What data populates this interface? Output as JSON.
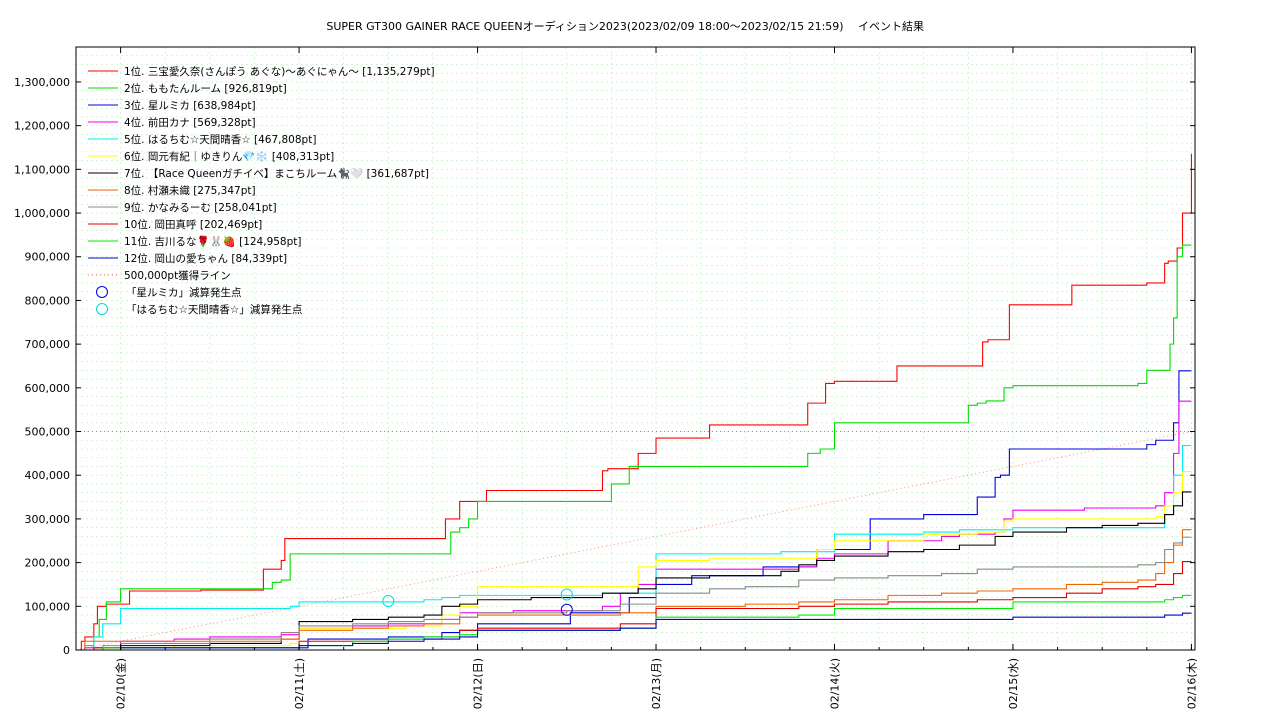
{
  "chart_data": {
    "type": "line",
    "title": "SUPER GT300 GAINER RACE QUEENオーディション2023(2023/02/09 18:00～2023/02/15 21:59)",
    "subtitle": "イベント結果",
    "xlabel": "",
    "ylabel": "",
    "ylim": [
      0,
      1380000
    ],
    "xlim": [
      -0.25,
      6.02
    ],
    "y_ticks": [
      "0",
      "100,000",
      "200,000",
      "300,000",
      "400,000",
      "500,000",
      "600,000",
      "700,000",
      "800,000",
      "900,000",
      "1,000,000",
      "1,100,000",
      "1,200,000",
      "1,300,000"
    ],
    "y_tick_values": [
      0,
      100000,
      200000,
      300000,
      400000,
      500000,
      600000,
      700000,
      800000,
      900000,
      1000000,
      1100000,
      1200000,
      1300000
    ],
    "x_ticks": [
      "02/10(金)",
      "02/11(土)",
      "02/12(日)",
      "02/13(月)",
      "02/14(火)",
      "02/15(水)",
      "02/16(木)"
    ],
    "x_tick_values": [
      0,
      1,
      2,
      3,
      4,
      5,
      6
    ],
    "x_unit": "days since 02/10 00:00",
    "grid": true,
    "legend_position": "top-left",
    "series": [
      {
        "name": "1位. 三宝愛久奈(さんぽう あぐな)〜あぐにゃん〜 [1,135,279pt]",
        "color": "#ff0000",
        "x": [
          -0.25,
          -0.22,
          -0.2,
          -0.15,
          -0.13,
          -0.08,
          0.05,
          0.35,
          0.45,
          0.6,
          0.8,
          0.9,
          0.92,
          1.0,
          1.5,
          1.75,
          1.82,
          1.85,
          1.9,
          2.05,
          2.4,
          2.58,
          2.6,
          2.7,
          2.73,
          2.8,
          2.9,
          3.0,
          3.25,
          3.3,
          3.5,
          3.7,
          3.85,
          3.92,
          3.95,
          4.0,
          4.3,
          4.35,
          4.6,
          4.8,
          4.83,
          4.86,
          4.95,
          4.98,
          5.0,
          5.3,
          5.33,
          5.7,
          5.75,
          5.77,
          5.85,
          5.87,
          5.9,
          5.92,
          5.95,
          6.0
        ],
        "y": [
          0,
          20000,
          30000,
          60000,
          100000,
          105000,
          135000,
          135000,
          137000,
          137000,
          185000,
          205000,
          255000,
          255000,
          255000,
          255000,
          300000,
          300000,
          340000,
          365000,
          365000,
          365000,
          365000,
          410000,
          415000,
          415000,
          450000,
          485000,
          485000,
          515000,
          515000,
          515000,
          565000,
          565000,
          610000,
          615000,
          615000,
          650000,
          650000,
          650000,
          705000,
          710000,
          710000,
          790000,
          790000,
          790000,
          835000,
          835000,
          840000,
          840000,
          885000,
          890000,
          890000,
          920000,
          1000000,
          1135279
        ]
      },
      {
        "name": "2位. ももたんルーム [926,819pt]",
        "color": "#00dd00",
        "x": [
          -0.25,
          -0.2,
          -0.15,
          -0.12,
          -0.08,
          0.0,
          0.5,
          0.8,
          0.85,
          0.9,
          0.95,
          1.5,
          1.8,
          1.85,
          1.9,
          1.95,
          2.0,
          2.5,
          2.7,
          2.75,
          2.8,
          2.85,
          3.3,
          3.55,
          3.8,
          3.85,
          3.92,
          4.0,
          4.4,
          4.7,
          4.75,
          4.8,
          4.85,
          4.95,
          5.0,
          5.5,
          5.65,
          5.7,
          5.75,
          5.85,
          5.88,
          5.9,
          5.92,
          5.95,
          6.0
        ],
        "y": [
          0,
          10000,
          30000,
          70000,
          110000,
          140000,
          140000,
          140000,
          155000,
          160000,
          220000,
          220000,
          220000,
          270000,
          280000,
          300000,
          340000,
          340000,
          340000,
          380000,
          380000,
          420000,
          420000,
          420000,
          420000,
          450000,
          460000,
          520000,
          520000,
          520000,
          560000,
          565000,
          570000,
          600000,
          605000,
          605000,
          605000,
          610000,
          640000,
          640000,
          700000,
          760000,
          900000,
          926819,
          926819
        ]
      },
      {
        "name": "3位. 星ルミカ [638,984pt]",
        "color": "#0000dd",
        "x": [
          -0.25,
          -0.1,
          0.5,
          0.9,
          1.0,
          1.05,
          1.5,
          1.8,
          1.9,
          2.0,
          2.5,
          2.52,
          2.8,
          2.85,
          3.0,
          3.2,
          3.5,
          3.6,
          3.8,
          3.9,
          4.0,
          4.2,
          4.5,
          4.75,
          4.8,
          4.9,
          4.93,
          4.98,
          5.0,
          5.3,
          5.5,
          5.6,
          5.75,
          5.8,
          5.85,
          5.9,
          5.93,
          6.0
        ],
        "y": [
          0,
          0,
          0,
          0,
          5000,
          25000,
          30000,
          40000,
          45000,
          60000,
          60000,
          85000,
          85000,
          120000,
          150000,
          170000,
          170000,
          190000,
          190000,
          230000,
          230000,
          300000,
          310000,
          310000,
          350000,
          395000,
          400000,
          460000,
          460000,
          460000,
          460000,
          460000,
          470000,
          480000,
          480000,
          520000,
          638984,
          638984
        ]
      },
      {
        "name": "4位. 前田カナ [569,328pt]",
        "color": "#ee00ee",
        "x": [
          -0.25,
          -0.2,
          0.0,
          0.3,
          0.5,
          0.9,
          1.0,
          1.3,
          1.5,
          1.8,
          1.9,
          2.2,
          2.5,
          2.7,
          2.8,
          2.9,
          3.0,
          3.3,
          3.5,
          3.8,
          3.9,
          4.0,
          4.3,
          4.6,
          4.7,
          4.9,
          4.95,
          5.0,
          5.4,
          5.6,
          5.8,
          5.85,
          5.9,
          5.93,
          6.0
        ],
        "y": [
          0,
          5000,
          20000,
          25000,
          30000,
          35000,
          50000,
          55000,
          60000,
          70000,
          85000,
          90000,
          90000,
          100000,
          130000,
          150000,
          185000,
          185000,
          185000,
          190000,
          210000,
          220000,
          250000,
          260000,
          265000,
          270000,
          300000,
          320000,
          325000,
          325000,
          330000,
          360000,
          450000,
          569328,
          569328
        ]
      },
      {
        "name": "5位. はるちむ☆天間晴香☆ [467,808pt]",
        "color": "#00eeee",
        "x": [
          -0.25,
          -0.15,
          -0.1,
          0.0,
          0.5,
          0.8,
          0.95,
          1.0,
          1.5,
          1.7,
          1.8,
          1.9,
          2.0,
          2.3,
          2.5,
          2.7,
          2.9,
          3.0,
          3.5,
          3.7,
          3.9,
          4.0,
          4.2,
          4.5,
          4.7,
          4.9,
          5.0,
          5.5,
          5.7,
          5.8,
          5.85,
          5.9,
          5.95,
          6.0
        ],
        "y": [
          0,
          30000,
          60000,
          95000,
          95000,
          95000,
          100000,
          110000,
          110000,
          115000,
          120000,
          125000,
          125000,
          125000,
          125000,
          130000,
          130000,
          220000,
          220000,
          225000,
          225000,
          265000,
          265000,
          270000,
          275000,
          275000,
          280000,
          280000,
          280000,
          280000,
          310000,
          400000,
          467808,
          467808
        ]
      },
      {
        "name": "6位. 岡元有紀｜ゆきりん💎❄️ [408,313pt]",
        "color": "#ffff00",
        "x": [
          -0.25,
          -0.1,
          0.3,
          0.6,
          0.95,
          1.0,
          1.3,
          1.6,
          1.8,
          1.9,
          2.0,
          2.5,
          2.8,
          2.9,
          3.0,
          3.3,
          3.5,
          3.8,
          3.9,
          4.0,
          4.5,
          4.8,
          4.95,
          5.0,
          5.5,
          5.8,
          5.85,
          5.9,
          5.95,
          6.0
        ],
        "y": [
          0,
          5000,
          10000,
          10000,
          15000,
          50000,
          50000,
          55000,
          80000,
          100000,
          145000,
          145000,
          145000,
          190000,
          205000,
          210000,
          210000,
          210000,
          230000,
          250000,
          265000,
          270000,
          295000,
          300000,
          300000,
          305000,
          330000,
          360000,
          408313,
          408313
        ]
      },
      {
        "name": "7位. 【Race Queenガチイベ】まこちルーム🐈‍⬛🤍 [361,687pt]",
        "color": "#000000",
        "x": [
          -0.25,
          -0.1,
          0.0,
          0.5,
          0.9,
          1.0,
          1.3,
          1.5,
          1.7,
          1.8,
          1.9,
          2.0,
          2.3,
          2.5,
          2.7,
          2.85,
          2.9,
          3.0,
          3.3,
          3.5,
          3.7,
          3.8,
          3.9,
          4.0,
          4.3,
          4.5,
          4.7,
          4.9,
          5.0,
          5.3,
          5.5,
          5.7,
          5.85,
          5.9,
          5.95,
          6.0
        ],
        "y": [
          0,
          5000,
          10000,
          15000,
          25000,
          65000,
          70000,
          75000,
          80000,
          100000,
          105000,
          115000,
          120000,
          120000,
          130000,
          130000,
          140000,
          165000,
          170000,
          170000,
          180000,
          195000,
          205000,
          215000,
          225000,
          230000,
          240000,
          260000,
          270000,
          280000,
          285000,
          290000,
          310000,
          330000,
          361687,
          361687
        ]
      },
      {
        "name": "8位. 村瀬未織 [275,347pt]",
        "color": "#ee6600",
        "x": [
          -0.25,
          -0.2,
          0.0,
          0.5,
          0.9,
          1.0,
          1.3,
          1.5,
          1.7,
          1.9,
          2.0,
          2.5,
          2.8,
          3.0,
          3.3,
          3.5,
          3.8,
          4.0,
          4.3,
          4.6,
          4.8,
          5.0,
          5.3,
          5.5,
          5.7,
          5.8,
          5.85,
          5.9,
          5.95,
          6.0
        ],
        "y": [
          0,
          20000,
          20000,
          20000,
          25000,
          45000,
          50000,
          55000,
          60000,
          75000,
          80000,
          80000,
          85000,
          100000,
          100000,
          105000,
          110000,
          115000,
          125000,
          130000,
          135000,
          140000,
          150000,
          155000,
          160000,
          175000,
          200000,
          240000,
          275347,
          275347
        ]
      },
      {
        "name": "9位. かなみるーむ [258,041pt]",
        "color": "#888888",
        "x": [
          -0.25,
          -0.1,
          0.0,
          0.5,
          0.9,
          1.0,
          1.3,
          1.5,
          1.7,
          1.9,
          2.0,
          2.5,
          2.8,
          3.0,
          3.3,
          3.5,
          3.8,
          4.0,
          4.3,
          4.6,
          4.8,
          5.0,
          5.3,
          5.5,
          5.7,
          5.8,
          5.85,
          5.9,
          5.95,
          6.0
        ],
        "y": [
          0,
          10000,
          15000,
          25000,
          40000,
          55000,
          60000,
          65000,
          70000,
          75000,
          85000,
          90000,
          105000,
          130000,
          140000,
          145000,
          160000,
          165000,
          170000,
          175000,
          185000,
          190000,
          190000,
          190000,
          195000,
          200000,
          230000,
          245000,
          258041,
          258041
        ]
      },
      {
        "name": "10位. 岡田真呼 [202,469pt]",
        "color": "#dd0000",
        "x": [
          -0.25,
          -0.15,
          0.0,
          0.5,
          0.9,
          1.0,
          1.3,
          1.5,
          1.7,
          1.8,
          1.9,
          2.0,
          2.5,
          2.8,
          3.0,
          3.3,
          3.5,
          3.8,
          4.0,
          4.3,
          4.6,
          4.8,
          5.0,
          5.3,
          5.5,
          5.7,
          5.8,
          5.9,
          5.95,
          6.0
        ],
        "y": [
          0,
          5000,
          5000,
          5000,
          5000,
          20000,
          20000,
          25000,
          25000,
          30000,
          45000,
          50000,
          50000,
          60000,
          95000,
          95000,
          95000,
          100000,
          105000,
          110000,
          110000,
          115000,
          120000,
          130000,
          140000,
          145000,
          150000,
          175000,
          202469,
          202469
        ]
      },
      {
        "name": "11位. 吉川るな🌹🐰🍓 [124,958pt]",
        "color": "#00ee00",
        "x": [
          -0.25,
          -0.1,
          0.0,
          0.5,
          0.9,
          1.0,
          1.3,
          1.5,
          1.7,
          1.9,
          2.0,
          2.5,
          2.8,
          3.0,
          3.3,
          3.5,
          3.8,
          4.0,
          4.3,
          4.6,
          4.8,
          5.0,
          5.3,
          5.5,
          5.7,
          5.8,
          5.85,
          5.9,
          5.95,
          6.0
        ],
        "y": [
          0,
          5000,
          5000,
          5000,
          5000,
          10000,
          20000,
          25000,
          30000,
          35000,
          45000,
          45000,
          50000,
          75000,
          75000,
          75000,
          80000,
          95000,
          95000,
          95000,
          95000,
          110000,
          110000,
          110000,
          110000,
          110000,
          115000,
          120000,
          124958,
          124958
        ]
      },
      {
        "name": "12位. 岡山の愛ちゃん [84,339pt]",
        "color": "#0000cc",
        "x": [
          -0.25,
          -0.1,
          0.0,
          0.5,
          0.9,
          1.0,
          1.3,
          1.5,
          1.7,
          1.9,
          2.0,
          2.5,
          2.8,
          3.0,
          3.3,
          3.5,
          3.8,
          4.0,
          4.3,
          4.6,
          4.8,
          5.0,
          5.3,
          5.5,
          5.7,
          5.8,
          5.85,
          5.9,
          5.95,
          6.0
        ],
        "y": [
          0,
          0,
          5000,
          5000,
          5000,
          10000,
          15000,
          20000,
          25000,
          30000,
          45000,
          45000,
          50000,
          70000,
          70000,
          70000,
          70000,
          70000,
          70000,
          70000,
          70000,
          75000,
          75000,
          75000,
          75000,
          75000,
          80000,
          80000,
          84339,
          84339
        ]
      }
    ],
    "reference_line": {
      "name": "500,000pt獲得ライン",
      "color": "#ff6666",
      "y": 500000
    },
    "diagonal_line": {
      "color": "#ff8888",
      "x": [
        -0.25,
        6.0
      ],
      "y": [
        0,
        500000
      ]
    },
    "markers": [
      {
        "name": "「星ルミカ」減算発生点",
        "color": "#0000dd",
        "x": 2.5,
        "y": 92000
      },
      {
        "name": "「はるちむ☆天間晴香☆」減算発生点",
        "color": "#00dddd",
        "x": 1.5,
        "y": 112000
      },
      {
        "name": "「はるちむ☆天間晴香☆」減算発生点",
        "color": "#00dddd",
        "x": 2.5,
        "y": 127000
      }
    ]
  }
}
